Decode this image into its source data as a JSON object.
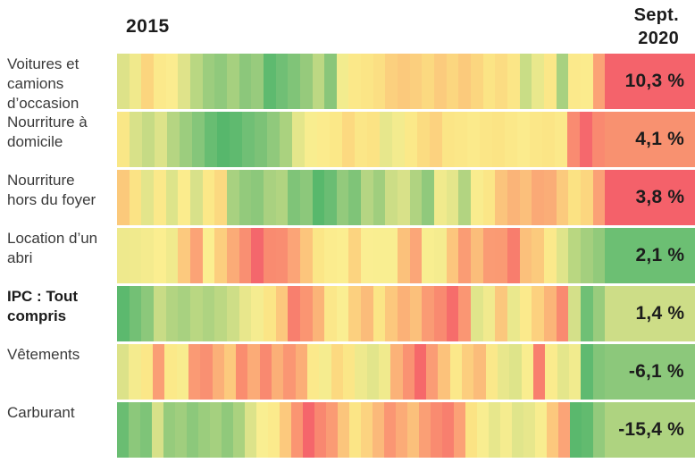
{
  "header": {
    "x_start_label": "2015",
    "x_end_line1": "Sept.",
    "x_end_line2": "2020"
  },
  "colors": {
    "background": "#ffffff",
    "label_text": "#3a3a3a",
    "value_text": "#1c1c1c",
    "scale_low": "#54b76b",
    "scale_mid": "#fbee90",
    "scale_high": "#f4616a"
  },
  "chart_data": {
    "type": "heatmap",
    "title": "",
    "x_start_label": "2015",
    "x_end_label": "Sept. 2020",
    "legend": "none",
    "rows": [
      {
        "label": "Voitures et camions d’occasion",
        "bold": false,
        "final_value_display": "10,3 %",
        "final_value_numeric": 10.3,
        "final_color": "#f4636b",
        "bands": [
          "#dde289",
          "#f0e98c",
          "#fbd57e",
          "#fbe98b",
          "#fbec8f",
          "#dfe38a",
          "#b9d782",
          "#9ccd7e",
          "#90c97c",
          "#a6d07f",
          "#8cc77b",
          "#98cb7d",
          "#5eba6f",
          "#70bf75",
          "#80c478",
          "#96ca7c",
          "#bcd883",
          "#89c67a",
          "#f2ec8e",
          "#fbe889",
          "#fbe586",
          "#fbdf83",
          "#fbd07e",
          "#fbc97c",
          "#fbcf7e",
          "#fbd980",
          "#fbcb7d",
          "#fbd67f",
          "#fbca7c",
          "#fbd67f",
          "#fbe485",
          "#fbdc82",
          "#fbe687",
          "#c9dd86",
          "#e9e88c",
          "#fbe788",
          "#a8d180",
          "#fbe98b",
          "#fbeb8d",
          "#fba276"
        ]
      },
      {
        "label": "Nourriture à domicile",
        "bold": false,
        "final_value_display": "4,1 %",
        "final_value_numeric": 4.1,
        "final_color": "#f89170",
        "bands": [
          "#f9e787",
          "#d8e189",
          "#c6db85",
          "#dde38a",
          "#b5d582",
          "#9ccd7e",
          "#85c67a",
          "#68bd72",
          "#57b76c",
          "#5fba6f",
          "#70bf75",
          "#7cc277",
          "#90c97c",
          "#aad27f",
          "#e4e68b",
          "#f8ed8f",
          "#fbeb8d",
          "#fbe888",
          "#fcd980",
          "#fbe687",
          "#fbe384",
          "#e7e78c",
          "#f3eb8e",
          "#fbe989",
          "#fbdc81",
          "#fcd27f",
          "#fbe586",
          "#fbe788",
          "#fbea8b",
          "#fbe687",
          "#fbe485",
          "#fbe889",
          "#fbeb8d",
          "#fbe788",
          "#fbe586",
          "#fbe98a",
          "#f98b71",
          "#f5686d",
          "#f98970"
        ]
      },
      {
        "label": "Nourriture hors du foyer",
        "bold": false,
        "final_value_display": "3,8 %",
        "final_value_numeric": 3.8,
        "final_color": "#f4616a",
        "bands": [
          "#fbc97b",
          "#fbe385",
          "#e3e58b",
          "#fbe98a",
          "#dde48a",
          "#fbec8d",
          "#d8e18a",
          "#fbe888",
          "#fbd980",
          "#a8d180",
          "#93ca7c",
          "#8cc87b",
          "#a9d180",
          "#b1d481",
          "#7fc478",
          "#8cc87b",
          "#58b86c",
          "#6abd73",
          "#93ca7c",
          "#7fc478",
          "#b5d583",
          "#a0ce7e",
          "#ccdd86",
          "#d8e189",
          "#b0d381",
          "#90c97c",
          "#f0ea8d",
          "#e4e68b",
          "#b2d481",
          "#f9ec8e",
          "#fbe687",
          "#fbc47c",
          "#fab478",
          "#fbbf7b",
          "#faa976",
          "#faad77",
          "#fbca7d",
          "#fbe283",
          "#fcd67f",
          "#fba176"
        ]
      },
      {
        "label": "Location d’un abri",
        "bold": false,
        "final_value_display": "2,1 %",
        "final_value_numeric": 2.1,
        "final_color": "#6cbf73",
        "bands": [
          "#eee98d",
          "#f0ea8d",
          "#f4eb8e",
          "#fbee90",
          "#f0ea8d",
          "#fcc97e",
          "#fba376",
          "#fbee90",
          "#fcce7e",
          "#fbab77",
          "#f98f72",
          "#f4676c",
          "#f98b70",
          "#f98d71",
          "#fba477",
          "#fcc57c",
          "#fbe687",
          "#fbec8e",
          "#fbee90",
          "#fcd480",
          "#faee92",
          "#f9ee91",
          "#f9ee91",
          "#fbc17b",
          "#fba678",
          "#f8ee90",
          "#f5ec8f",
          "#fcc67d",
          "#fa9c74",
          "#fbbd7a",
          "#fa9b74",
          "#fa9a73",
          "#f87d6d",
          "#fbc07b",
          "#fbca7d",
          "#fbe98b",
          "#dfe48a",
          "#b9d781",
          "#a4cf7e",
          "#92ca7b"
        ]
      },
      {
        "label": "IPC : Tout compris",
        "bold": true,
        "final_value_display": "1,4 %",
        "final_value_numeric": 1.4,
        "final_color": "#cddd87",
        "bands": [
          "#5cb96e",
          "#73c075",
          "#8cc87b",
          "#c8dc86",
          "#b2d481",
          "#a8d180",
          "#b9d782",
          "#aed381",
          "#bcd883",
          "#cede87",
          "#e8e78c",
          "#f5ec90",
          "#fbe586",
          "#fcc87d",
          "#f87f6e",
          "#fa9572",
          "#fbb478",
          "#fbe78a",
          "#faee92",
          "#fcd07f",
          "#fbbc7a",
          "#fbe586",
          "#fcc87d",
          "#fbb177",
          "#fbc07b",
          "#fa9b74",
          "#f98a70",
          "#f66d6b",
          "#fa9673",
          "#e0e58b",
          "#f1ea8e",
          "#fbc77d",
          "#eae88d",
          "#fbea8c",
          "#fcd17f",
          "#fbb578",
          "#f98a70",
          "#d4e089",
          "#6fc075",
          "#99cc7d"
        ]
      },
      {
        "label": "Vêtements",
        "bold": false,
        "final_value_display": "-6,1 %",
        "final_value_numeric": -6.1,
        "final_color": "#8cc87b",
        "bands": [
          "#dce289",
          "#f4eb8e",
          "#fbe788",
          "#fa9e75",
          "#fbe989",
          "#f8ec8e",
          "#fa9a74",
          "#f99072",
          "#fbb078",
          "#fcca7d",
          "#fa8d6f",
          "#fbab77",
          "#f98970",
          "#fbaf77",
          "#fa9673",
          "#fbae77",
          "#fbe98b",
          "#f5ec8f",
          "#fcd980",
          "#fbe687",
          "#eee98d",
          "#e2e58b",
          "#f0ea8d",
          "#fbb278",
          "#fa9272",
          "#f6686a",
          "#fa9c75",
          "#fcc27b",
          "#fbe88a",
          "#fcce7e",
          "#fbbc7a",
          "#fae88a",
          "#e8e78c",
          "#dee48a",
          "#f9ed8f",
          "#f87f6e",
          "#faeb8d",
          "#e4e68b",
          "#f1eb8e",
          "#5fba70",
          "#83c579"
        ]
      },
      {
        "label": "Carburant",
        "bold": false,
        "final_value_display": "-15,4 %",
        "final_value_numeric": -15.4,
        "final_color": "#aed380",
        "bands": [
          "#6abd72",
          "#8cc87b",
          "#7ec478",
          "#d7e189",
          "#96cb7c",
          "#a0ce7e",
          "#8cc87b",
          "#9bcd7d",
          "#a5d07f",
          "#90c97b",
          "#aad27f",
          "#dce38a",
          "#f9ee91",
          "#fbea8c",
          "#fcc97d",
          "#fa9572",
          "#f5666b",
          "#f98770",
          "#fa9b74",
          "#fbc57c",
          "#fbe586",
          "#fcd380",
          "#fbb97a",
          "#fa9673",
          "#fbab77",
          "#fbc07b",
          "#fa9f75",
          "#f98b70",
          "#f87f6e",
          "#fba176",
          "#fbe384",
          "#f8ed90",
          "#e7e78c",
          "#f5ec8f",
          "#e0e58b",
          "#e7e78c",
          "#f8ed8f",
          "#fcc87d",
          "#fba477",
          "#5ab86d",
          "#62bb6f",
          "#93ca7c"
        ]
      }
    ]
  }
}
